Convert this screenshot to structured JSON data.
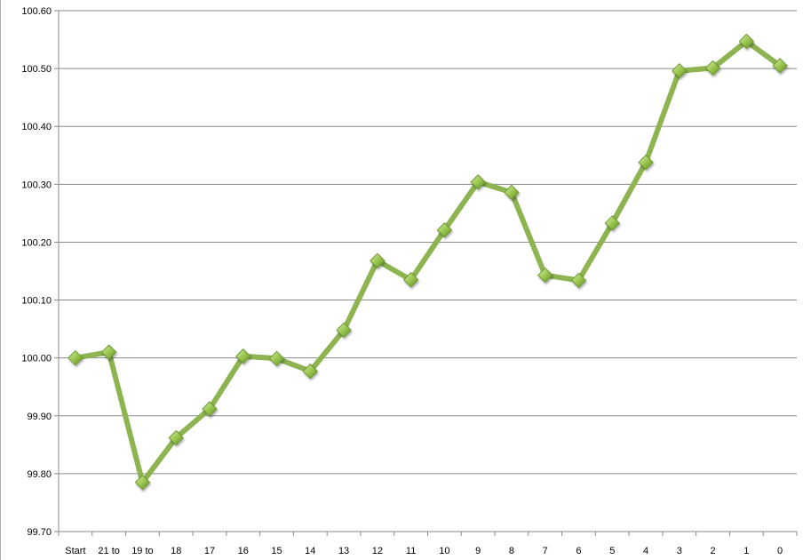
{
  "chart_data": {
    "type": "line",
    "title": "",
    "xlabel": "",
    "ylabel": "",
    "ylim": [
      99.7,
      100.6
    ],
    "y_ticks": [
      "99.70",
      "99.80",
      "99.90",
      "100.00",
      "100.10",
      "100.20",
      "100.30",
      "100.40",
      "100.50",
      "100.60"
    ],
    "categories": [
      "Start",
      "21 to",
      "19 to",
      "18",
      "17",
      "16",
      "15",
      "14",
      "13",
      "12",
      "11",
      "10",
      "9",
      "8",
      "7",
      "6",
      "5",
      "4",
      "3",
      "2",
      "1",
      "0"
    ],
    "series": [
      {
        "values": [
          100.0,
          100.01,
          99.785,
          99.862,
          99.912,
          100.003,
          99.999,
          99.977,
          100.048,
          100.168,
          100.135,
          100.221,
          100.304,
          100.286,
          100.143,
          100.134,
          100.233,
          100.338,
          100.496,
          100.501,
          100.547,
          100.505
        ],
        "color": "#8db451",
        "marker": "diamond",
        "marker_color": "#9bc750"
      }
    ],
    "grid": true,
    "legend": "none"
  }
}
